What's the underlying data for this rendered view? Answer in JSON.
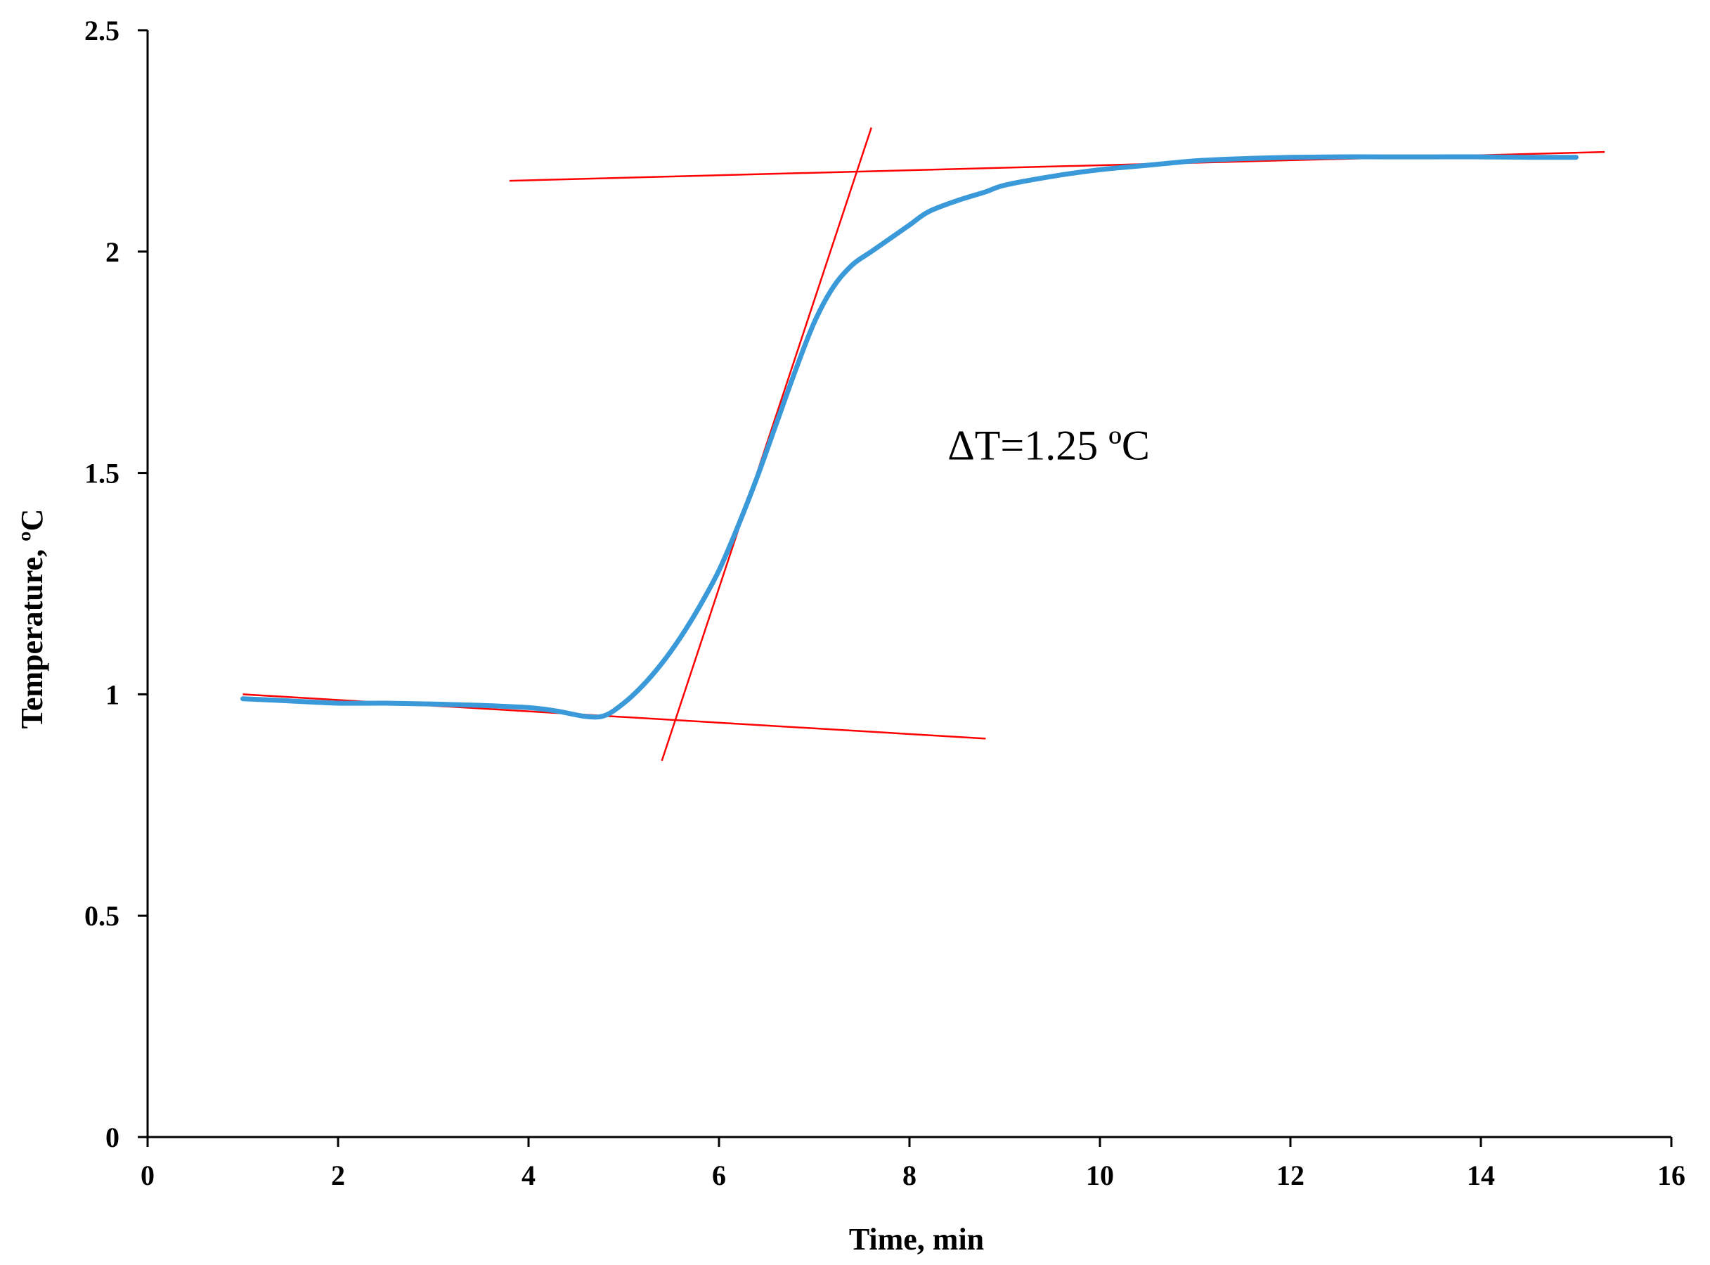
{
  "chart_data": {
    "type": "line",
    "title": "",
    "xlabel": "Time, min",
    "ylabel": "Temperature, ºC",
    "xlim": [
      0,
      16
    ],
    "ylim": [
      0,
      2.5
    ],
    "xticks": [
      0,
      2,
      4,
      6,
      8,
      10,
      12,
      14,
      16
    ],
    "yticks": [
      0,
      0.5,
      1,
      1.5,
      2,
      2.5
    ],
    "xtick_labels": [
      "0",
      "2",
      "4",
      "6",
      "8",
      "10",
      "12",
      "14",
      "16"
    ],
    "ytick_labels": [
      "0",
      "0.5",
      "1",
      "1.5",
      "2",
      "2.5"
    ],
    "grid": false,
    "legend": "none",
    "series": [
      {
        "color": "#3a9ad9",
        "x": [
          1.0,
          1.5,
          2.0,
          2.5,
          3.0,
          3.5,
          4.0,
          4.3,
          4.6,
          4.8,
          5.0,
          5.2,
          5.4,
          5.6,
          5.8,
          6.0,
          6.2,
          6.4,
          6.6,
          6.8,
          7.0,
          7.2,
          7.4,
          7.6,
          7.8,
          8.0,
          8.2,
          8.5,
          8.8,
          9.0,
          9.5,
          10.0,
          10.5,
          11.0,
          11.5,
          12.0,
          12.5,
          13.0,
          13.5,
          14.0,
          14.5,
          15.0
        ],
        "y": [
          0.99,
          0.985,
          0.98,
          0.98,
          0.978,
          0.975,
          0.97,
          0.962,
          0.95,
          0.952,
          0.98,
          1.02,
          1.07,
          1.13,
          1.2,
          1.28,
          1.38,
          1.49,
          1.61,
          1.73,
          1.84,
          1.92,
          1.97,
          2.0,
          2.03,
          2.06,
          2.09,
          2.115,
          2.135,
          2.15,
          2.17,
          2.185,
          2.195,
          2.205,
          2.21,
          2.213,
          2.214,
          2.214,
          2.214,
          2.214,
          2.213,
          2.213
        ]
      }
    ],
    "reference_lines": [
      {
        "color": "#ff0000",
        "x": [
          1.0,
          8.8
        ],
        "y": [
          1.0,
          0.9
        ]
      },
      {
        "color": "#ff0000",
        "x": [
          5.4,
          7.6
        ],
        "y": [
          0.85,
          2.28
        ]
      },
      {
        "color": "#ff0000",
        "x": [
          3.8,
          15.3
        ],
        "y": [
          2.16,
          2.225
        ]
      }
    ],
    "annotations": [
      {
        "text": "ΔT=1.25 ºC",
        "x": 8.4,
        "y": 1.53
      }
    ]
  }
}
